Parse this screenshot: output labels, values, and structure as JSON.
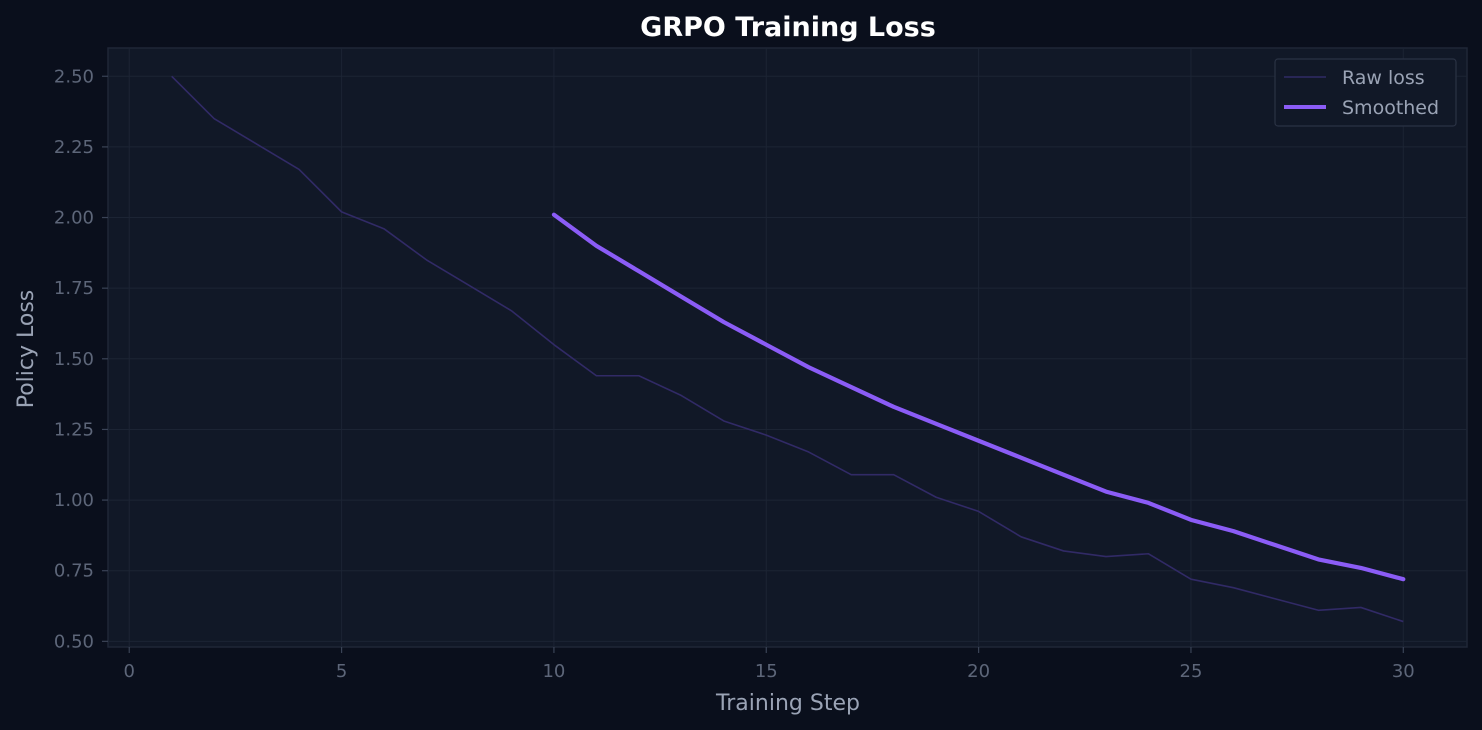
{
  "chart_data": {
    "type": "line",
    "title": "GRPO Training Loss",
    "xlabel": "Training Step",
    "ylabel": "Policy Loss",
    "xlim": [
      -0.5,
      31.5
    ],
    "ylim": [
      0.48,
      2.6
    ],
    "xticks": [
      0,
      5,
      10,
      15,
      20,
      25,
      30
    ],
    "yticks": [
      0.5,
      0.75,
      1.0,
      1.25,
      1.5,
      1.75,
      2.0,
      2.25,
      2.5
    ],
    "ytick_labels": [
      "0.50",
      "0.75",
      "1.00",
      "1.25",
      "1.50",
      "1.75",
      "2.00",
      "2.25",
      "2.50"
    ],
    "xtick_labels": [
      "0",
      "5",
      "10",
      "15",
      "20",
      "25",
      "30"
    ],
    "grid": true,
    "legend_position": "top-right",
    "colors": {
      "background": "#0a0f1c",
      "plot_area": "#111827",
      "grid": "#1c2434",
      "raw": "#312a66",
      "smoothed": "#8b5cf6"
    },
    "series": [
      {
        "name": "Raw loss",
        "x": [
          1,
          2,
          3,
          4,
          5,
          6,
          7,
          8,
          9,
          10,
          11,
          12,
          13,
          14,
          15,
          16,
          17,
          18,
          19,
          20,
          21,
          22,
          23,
          24,
          25,
          26,
          27,
          28,
          29,
          30
        ],
        "values": [
          2.5,
          2.35,
          2.26,
          2.17,
          2.02,
          1.96,
          1.85,
          1.76,
          1.67,
          1.55,
          1.44,
          1.44,
          1.37,
          1.28,
          1.23,
          1.17,
          1.09,
          1.09,
          1.01,
          0.96,
          0.87,
          0.82,
          0.8,
          0.81,
          0.72,
          0.69,
          0.65,
          0.61,
          0.62,
          0.57
        ]
      },
      {
        "name": "Smoothed",
        "x": [
          10,
          11,
          12,
          13,
          14,
          15,
          16,
          17,
          18,
          19,
          20,
          21,
          22,
          23,
          24,
          25,
          26,
          27,
          28,
          29,
          30
        ],
        "values": [
          2.01,
          1.9,
          1.81,
          1.72,
          1.63,
          1.55,
          1.47,
          1.4,
          1.33,
          1.27,
          1.21,
          1.15,
          1.09,
          1.03,
          0.99,
          0.93,
          0.89,
          0.84,
          0.79,
          0.76,
          0.72
        ]
      }
    ]
  }
}
